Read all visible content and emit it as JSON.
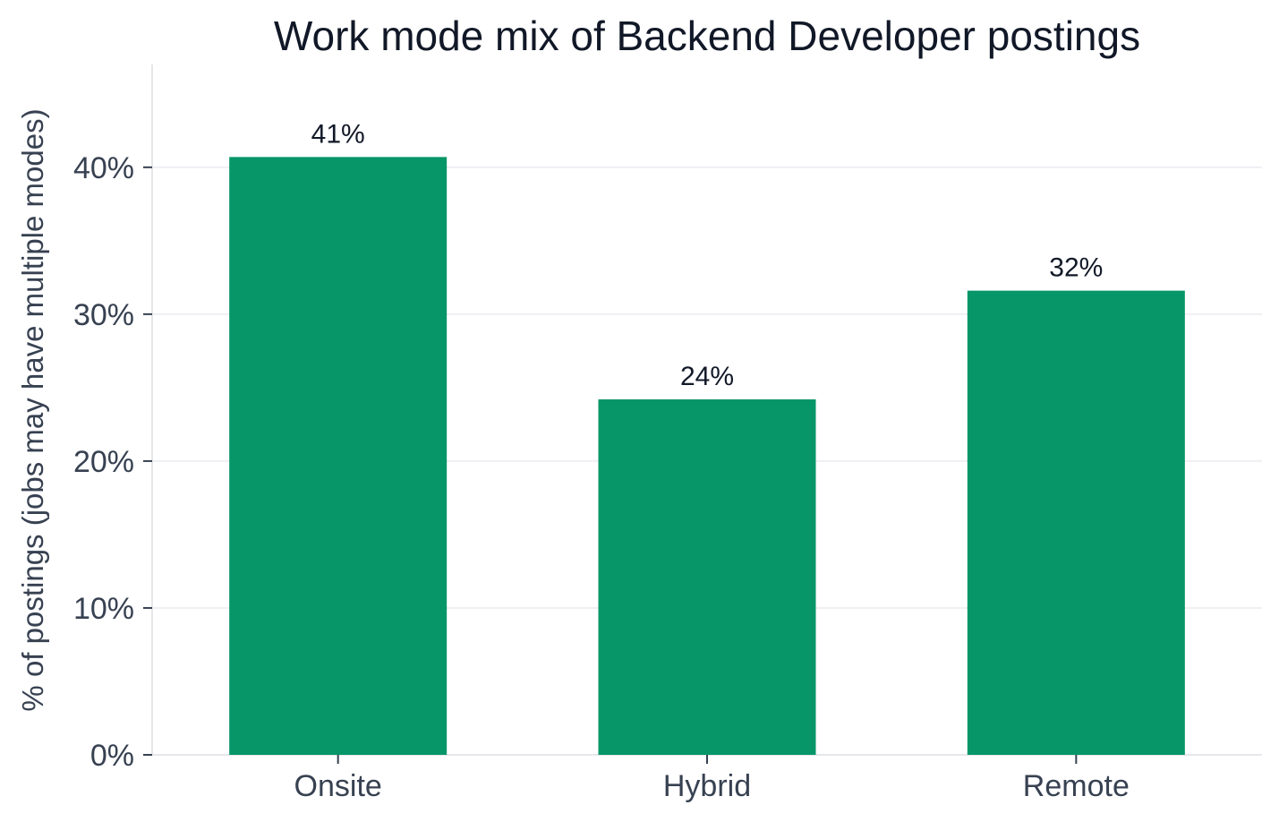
{
  "chart_data": {
    "type": "bar",
    "title": "Work mode mix of Backend Developer postings",
    "xlabel": "",
    "ylabel": "% of postings (jobs may have multiple modes)",
    "categories": [
      "Onsite",
      "Hybrid",
      "Remote"
    ],
    "values": [
      40.7,
      24.2,
      31.6
    ],
    "value_labels": [
      "41%",
      "24%",
      "32%"
    ],
    "ylim": [
      0,
      47
    ],
    "yticks": [
      0,
      10,
      20,
      30,
      40
    ],
    "ytick_labels": [
      "0%",
      "10%",
      "20%",
      "30%",
      "40%"
    ],
    "grid": "horizontal",
    "colors": {
      "bar": "#069668",
      "grid": "#eef0f3",
      "axis": "#e5e7eb",
      "title": "#111827",
      "text": "#374151"
    }
  }
}
